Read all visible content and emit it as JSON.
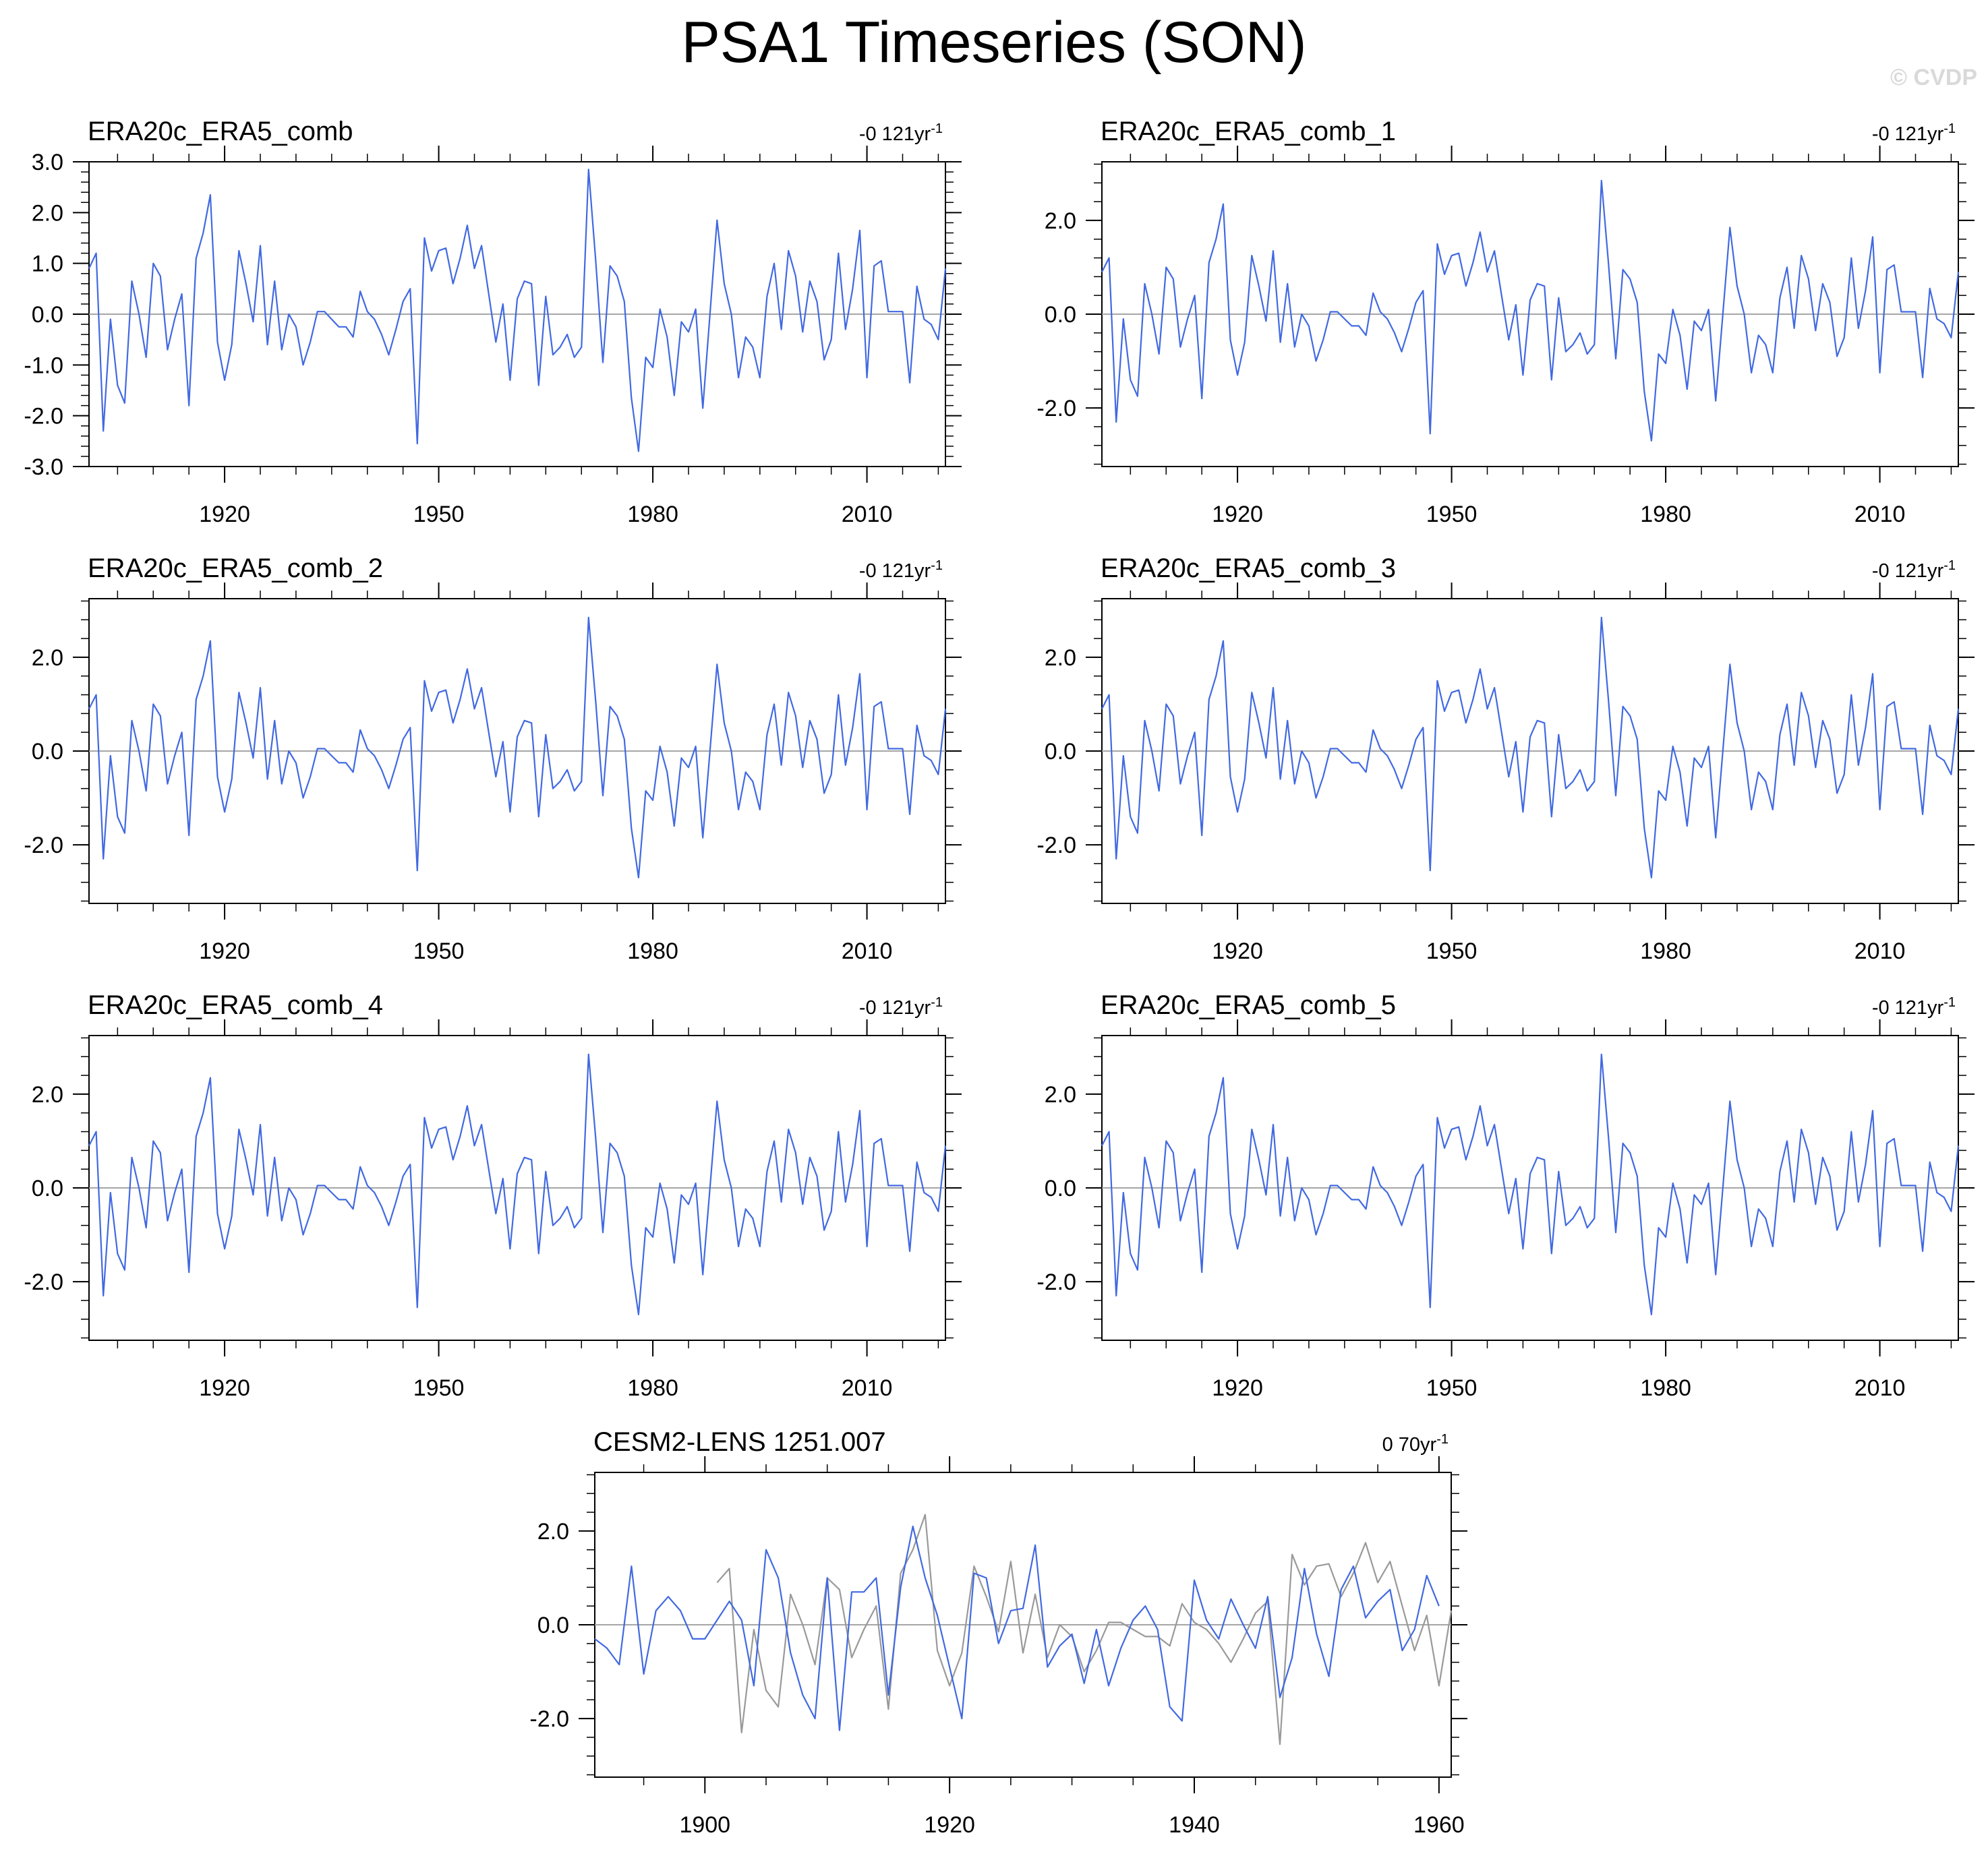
{
  "title": "PSA1 Timeseries (SON)",
  "watermark": "© CVDP",
  "colors": {
    "obs_line": "#4169e1",
    "model_line": "#4169e1",
    "obs_overlay": "#999999",
    "axis": "#000000",
    "zero_line": "#a6a6a6"
  },
  "obs_series": {
    "name": "ERA20c_ERA5_comb",
    "years": [
      1901,
      1902,
      1903,
      1904,
      1905,
      1906,
      1907,
      1908,
      1909,
      1910,
      1911,
      1912,
      1913,
      1914,
      1915,
      1916,
      1917,
      1918,
      1919,
      1920,
      1921,
      1922,
      1923,
      1924,
      1925,
      1926,
      1927,
      1928,
      1929,
      1930,
      1931,
      1932,
      1933,
      1934,
      1935,
      1936,
      1937,
      1938,
      1939,
      1940,
      1941,
      1942,
      1943,
      1944,
      1945,
      1946,
      1947,
      1948,
      1949,
      1950,
      1951,
      1952,
      1953,
      1954,
      1955,
      1956,
      1957,
      1958,
      1959,
      1960,
      1961,
      1962,
      1963,
      1964,
      1965,
      1966,
      1967,
      1968,
      1969,
      1970,
      1971,
      1972,
      1973,
      1974,
      1975,
      1976,
      1977,
      1978,
      1979,
      1980,
      1981,
      1982,
      1983,
      1984,
      1985,
      1986,
      1987,
      1988,
      1989,
      1990,
      1991,
      1992,
      1993,
      1994,
      1995,
      1996,
      1997,
      1998,
      1999,
      2000,
      2001,
      2002,
      2003,
      2004,
      2005,
      2006,
      2007,
      2008,
      2009,
      2010,
      2011,
      2012,
      2013,
      2014,
      2015,
      2016,
      2017,
      2018,
      2019,
      2020,
      2021
    ],
    "values": [
      0.9,
      1.2,
      -2.3,
      -0.1,
      -1.4,
      -1.75,
      0.65,
      0.0,
      -0.85,
      1.0,
      0.75,
      -0.7,
      -0.1,
      0.4,
      -1.8,
      1.1,
      1.6,
      2.35,
      -0.55,
      -1.3,
      -0.6,
      1.25,
      0.6,
      -0.15,
      1.35,
      -0.6,
      0.65,
      -0.7,
      0.0,
      -0.25,
      -1.0,
      -0.55,
      0.05,
      0.05,
      -0.1,
      -0.25,
      -0.25,
      -0.45,
      0.45,
      0.05,
      -0.1,
      -0.4,
      -0.8,
      -0.3,
      0.25,
      0.5,
      -2.55,
      1.5,
      0.85,
      1.25,
      1.3,
      0.6,
      1.1,
      1.75,
      0.9,
      1.35,
      0.4,
      -0.55,
      0.2,
      -1.3,
      0.3,
      0.65,
      0.6,
      -1.4,
      0.35,
      -0.8,
      -0.65,
      -0.4,
      -0.85,
      -0.65,
      2.85,
      1.05,
      -0.95,
      0.95,
      0.75,
      0.25,
      -1.65,
      -2.7,
      -0.85,
      -1.05,
      0.1,
      -0.45,
      -1.6,
      -0.15,
      -0.35,
      0.1,
      -1.85,
      0.0,
      1.85,
      0.6,
      0.0,
      -1.25,
      -0.45,
      -0.65,
      -1.25,
      0.35,
      1.0,
      -0.3,
      1.25,
      0.75,
      -0.35,
      0.65,
      0.25,
      -0.9,
      -0.5,
      1.2,
      -0.3,
      0.5,
      1.65,
      -1.25,
      0.95,
      1.05,
      0.05,
      0.05,
      0.05,
      -1.35,
      0.55,
      -0.1,
      -0.2,
      -0.5,
      0.9
    ]
  },
  "model_series": {
    "name": "CESM2-LENS 1251.007",
    "years": [
      1891,
      1892,
      1893,
      1894,
      1895,
      1896,
      1897,
      1898,
      1899,
      1900,
      1901,
      1902,
      1903,
      1904,
      1905,
      1906,
      1907,
      1908,
      1909,
      1910,
      1911,
      1912,
      1913,
      1914,
      1915,
      1916,
      1917,
      1918,
      1919,
      1920,
      1921,
      1922,
      1923,
      1924,
      1925,
      1926,
      1927,
      1928,
      1929,
      1930,
      1931,
      1932,
      1933,
      1934,
      1935,
      1936,
      1937,
      1938,
      1939,
      1940,
      1941,
      1942,
      1943,
      1944,
      1945,
      1946,
      1947,
      1948,
      1949,
      1950,
      1951,
      1952,
      1953,
      1954,
      1955,
      1956,
      1957,
      1958,
      1959,
      1960
    ],
    "values": [
      -0.3,
      -0.5,
      -0.85,
      1.25,
      -1.05,
      0.3,
      0.6,
      0.3,
      -0.3,
      -0.3,
      0.1,
      0.5,
      0.1,
      -1.3,
      1.6,
      1.0,
      -0.6,
      -1.5,
      -2.0,
      1.0,
      -2.25,
      0.7,
      0.7,
      1.0,
      -1.5,
      0.8,
      2.1,
      1.0,
      0.2,
      -0.9,
      -2.0,
      1.1,
      1.0,
      -0.4,
      0.3,
      0.35,
      1.7,
      -0.9,
      -0.45,
      -0.2,
      -1.25,
      -0.1,
      -1.3,
      -0.5,
      0.1,
      0.4,
      -0.1,
      -1.75,
      -2.05,
      0.95,
      0.1,
      -0.3,
      0.55,
      0.0,
      -0.5,
      0.6,
      -1.55,
      -0.7,
      1.2,
      -0.2,
      -1.1,
      0.75,
      1.25,
      0.15,
      0.5,
      0.75,
      -0.55,
      -0.1,
      1.05,
      0.4
    ]
  },
  "chart_data": [
    {
      "type": "line",
      "title": "ERA20c_ERA5_comb",
      "trend_label": "-0 121yr",
      "trend_sup": "-1",
      "series_ref": "obs_series",
      "xlim": [
        1901,
        2021
      ],
      "ylim": [
        -3.0,
        3.0
      ],
      "x_ticks": [
        1920,
        1950,
        1980,
        2010
      ],
      "x_tick_labels": [
        "1920",
        "1950",
        "1980",
        "2010"
      ],
      "y_ticks": [
        -3.0,
        -2.0,
        -1.0,
        0.0,
        1.0,
        2.0,
        3.0
      ],
      "y_tick_labels": [
        "-3.0",
        "-2.0",
        "-1.0",
        "0.0",
        "1.0",
        "2.0",
        "3.0"
      ],
      "zero_line": true
    },
    {
      "type": "line",
      "title": "ERA20c_ERA5_comb_1",
      "trend_label": "-0 121yr",
      "trend_sup": "-1",
      "series_ref": "obs_series",
      "xlim": [
        1901,
        2021
      ],
      "ylim": [
        -3.25,
        3.25
      ],
      "x_ticks": [
        1920,
        1950,
        1980,
        2010
      ],
      "x_tick_labels": [
        "1920",
        "1950",
        "1980",
        "2010"
      ],
      "y_ticks": [
        -2.0,
        0.0,
        2.0
      ],
      "y_tick_labels": [
        "-2.0",
        "0.0",
        "2.0"
      ],
      "zero_line": true
    },
    {
      "type": "line",
      "title": "ERA20c_ERA5_comb_2",
      "trend_label": "-0 121yr",
      "trend_sup": "-1",
      "series_ref": "obs_series",
      "xlim": [
        1901,
        2021
      ],
      "ylim": [
        -3.25,
        3.25
      ],
      "x_ticks": [
        1920,
        1950,
        1980,
        2010
      ],
      "x_tick_labels": [
        "1920",
        "1950",
        "1980",
        "2010"
      ],
      "y_ticks": [
        -2.0,
        0.0,
        2.0
      ],
      "y_tick_labels": [
        "-2.0",
        "0.0",
        "2.0"
      ],
      "zero_line": true
    },
    {
      "type": "line",
      "title": "ERA20c_ERA5_comb_3",
      "trend_label": "-0 121yr",
      "trend_sup": "-1",
      "series_ref": "obs_series",
      "xlim": [
        1901,
        2021
      ],
      "ylim": [
        -3.25,
        3.25
      ],
      "x_ticks": [
        1920,
        1950,
        1980,
        2010
      ],
      "x_tick_labels": [
        "1920",
        "1950",
        "1980",
        "2010"
      ],
      "y_ticks": [
        -2.0,
        0.0,
        2.0
      ],
      "y_tick_labels": [
        "-2.0",
        "0.0",
        "2.0"
      ],
      "zero_line": true
    },
    {
      "type": "line",
      "title": "ERA20c_ERA5_comb_4",
      "trend_label": "-0 121yr",
      "trend_sup": "-1",
      "series_ref": "obs_series",
      "xlim": [
        1901,
        2021
      ],
      "ylim": [
        -3.25,
        3.25
      ],
      "x_ticks": [
        1920,
        1950,
        1980,
        2010
      ],
      "x_tick_labels": [
        "1920",
        "1950",
        "1980",
        "2010"
      ],
      "y_ticks": [
        -2.0,
        0.0,
        2.0
      ],
      "y_tick_labels": [
        "-2.0",
        "0.0",
        "2.0"
      ],
      "zero_line": true
    },
    {
      "type": "line",
      "title": "ERA20c_ERA5_comb_5",
      "trend_label": "-0 121yr",
      "trend_sup": "-1",
      "series_ref": "obs_series",
      "xlim": [
        1901,
        2021
      ],
      "ylim": [
        -3.25,
        3.25
      ],
      "x_ticks": [
        1920,
        1950,
        1980,
        2010
      ],
      "x_tick_labels": [
        "1920",
        "1950",
        "1980",
        "2010"
      ],
      "y_ticks": [
        -2.0,
        0.0,
        2.0
      ],
      "y_tick_labels": [
        "-2.0",
        "0.0",
        "2.0"
      ],
      "zero_line": true
    },
    {
      "type": "line",
      "title": "CESM2-LENS 1251.007",
      "trend_label": "0 70yr",
      "trend_sup": "-1",
      "series_ref": "model_series",
      "overlay_ref": "obs_series",
      "xlim": [
        1891,
        1961
      ],
      "ylim": [
        -3.25,
        3.25
      ],
      "x_ticks": [
        1900,
        1920,
        1940,
        1960
      ],
      "x_tick_labels": [
        "1900",
        "1920",
        "1940",
        "1960"
      ],
      "y_ticks": [
        -2.0,
        0.0,
        2.0
      ],
      "y_tick_labels": [
        "-2.0",
        "0.0",
        "2.0"
      ],
      "zero_line": true
    }
  ]
}
